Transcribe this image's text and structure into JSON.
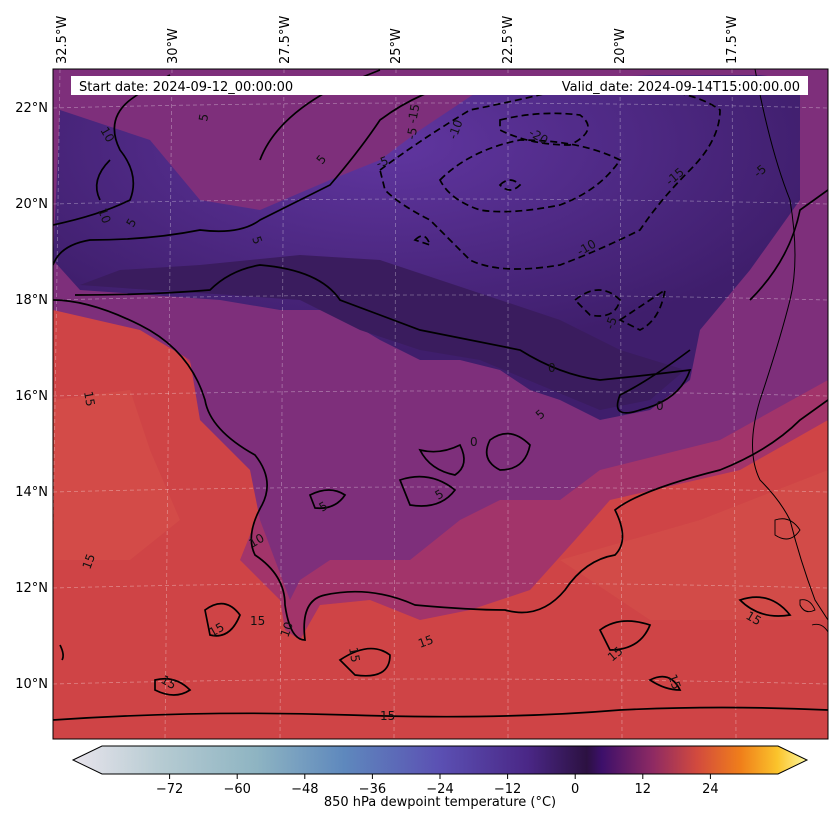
{
  "header": {
    "start_date": "Start date: 2024-09-12_00:00:00",
    "valid_date": "Valid_date: 2024-09-14T15:00:00.00"
  },
  "axes": {
    "lon_labels": [
      "32.5°W",
      "30°W",
      "27.5°W",
      "25°W",
      "22.5°W",
      "20°W",
      "17.5°W"
    ],
    "lat_labels": [
      "22°N",
      "20°N",
      "18°N",
      "16°N",
      "14°N",
      "12°N",
      "10°N"
    ]
  },
  "contour_labels": {
    "positive": [
      "10",
      "5",
      "5",
      "5",
      "10",
      "15",
      "15",
      "10",
      "15",
      "10",
      "15",
      "15",
      "15",
      "15",
      "15",
      "15",
      "15",
      "15",
      "5",
      "5",
      "0",
      "0",
      "0",
      "5",
      "5"
    ],
    "negative": [
      "-5",
      "-5",
      "-10",
      "-15",
      "-20",
      "-15",
      "-10",
      "-5",
      "-5"
    ]
  },
  "colorbar": {
    "label": "850 hPa dewpoint temperature ($^\\circ$C)",
    "label_display": "850 hPa dewpoint temperature (°C)",
    "ticks": [
      "−72",
      "−60",
      "−48",
      "−36",
      "−24",
      "−12",
      "0",
      "12",
      "24"
    ],
    "vmin": -84,
    "vmax": 36
  },
  "colors": {
    "warm_bg": "#cf4446",
    "dry_core": "#3b1f6b",
    "mid_purple": "#5c2f8c",
    "contour": "#000000"
  }
}
